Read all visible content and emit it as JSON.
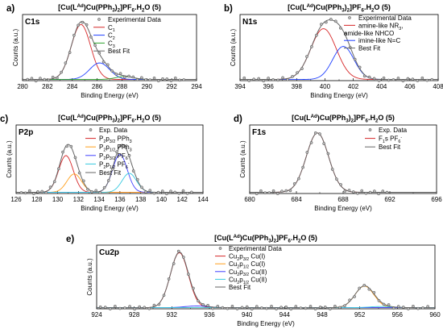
{
  "chart_data": [
    {
      "type": "line",
      "panel_letter": "a)",
      "title": "[Cu(L^Ad)Cu(PPh3)2]PF6.H2O (5)",
      "label": "C1s",
      "xlabel": "Binding Energy (eV)",
      "ylabel": "Counts (a.u.)",
      "xlim": [
        280,
        294
      ],
      "ylim": [
        0,
        1.12
      ],
      "xticks": [
        280,
        282,
        284,
        286,
        288,
        290,
        292,
        294
      ],
      "legend_position": "top-right",
      "peaks": [
        {
          "name": "C1",
          "color": "#d62728",
          "center": 284.7,
          "height": 0.93,
          "width": 0.78
        },
        {
          "name": "C2",
          "color": "#1f3fff",
          "center": 286.2,
          "height": 0.28,
          "width": 0.8
        },
        {
          "name": "C3",
          "color": "#2ca02c",
          "center": 288.2,
          "height": 0.05,
          "width": 0.7
        }
      ],
      "series": [
        {
          "name": "Experimental Data",
          "kind": "points",
          "x_start": 280.4,
          "x_step": 0.34,
          "count": 38
        },
        {
          "name": "Best Fit",
          "kind": "sum",
          "color": "#666666"
        }
      ]
    },
    {
      "type": "line",
      "panel_letter": "b)",
      "title": "[Cu(L^Ad)Cu(PPh3)2]PF6.H2O (5)",
      "label": "N1s",
      "xlabel": "Binding Energy (eV)",
      "ylabel": "Counts (a.u.)",
      "xlim": [
        394,
        408
      ],
      "ylim": [
        0,
        1.12
      ],
      "xticks": [
        394,
        396,
        398,
        400,
        402,
        404,
        406,
        408
      ],
      "legend_position": "top-right",
      "peaks": [
        {
          "name": "amine-like NR3, amide-like NHCO",
          "color": "#d62728",
          "center": 399.9,
          "height": 0.86,
          "width": 0.9
        },
        {
          "name": "imine-like N=C",
          "color": "#1f3fff",
          "center": 401.3,
          "height": 0.56,
          "width": 0.75
        }
      ],
      "series": [
        {
          "name": "Experimental Data",
          "kind": "points",
          "x_start": 394.3,
          "x_step": 0.34,
          "count": 40
        },
        {
          "name": "Best Fit",
          "kind": "sum",
          "color": "#666666"
        }
      ]
    },
    {
      "type": "line",
      "panel_letter": "c)",
      "title": "[Cu(L^Ad)Cu(PPh3)2]PF6.H2O (5)",
      "label": "P2p",
      "xlabel": "Binding Energy (eV)",
      "ylabel": "Counts (a.u.)",
      "xlim": [
        126,
        144
      ],
      "ylim": [
        0,
        1.12
      ],
      "xticks": [
        126,
        128,
        130,
        132,
        134,
        136,
        138,
        140,
        142,
        144
      ],
      "legend_position": "top-center",
      "peaks": [
        {
          "name": "P2p3/2 PPh3",
          "color": "#d62728",
          "center": 130.8,
          "height": 0.6,
          "width": 0.7
        },
        {
          "name": "P2p1/2 PPh3",
          "color": "#ff9f1c",
          "center": 131.6,
          "height": 0.3,
          "width": 0.7
        },
        {
          "name": "P2p3/2 PF6-",
          "color": "#4040ff",
          "center": 136.0,
          "height": 0.62,
          "width": 0.7
        },
        {
          "name": "P2p1/2 PF6-",
          "color": "#36c9e0",
          "center": 136.9,
          "height": 0.31,
          "width": 0.7
        }
      ],
      "series": [
        {
          "name": "Exp. Data",
          "kind": "points",
          "x_start": 126.5,
          "x_step": 0.4,
          "count": 42
        },
        {
          "name": "Best Fit",
          "kind": "sum",
          "color": "#666666"
        }
      ]
    },
    {
      "type": "line",
      "panel_letter": "d)",
      "title": "[Cu(L^Ad)Cu(PPh3)2]PF6.H2O (5)",
      "label": "F1s",
      "xlabel": "Binding Energy (eV)",
      "ylabel": "Counts (a.u.)",
      "xlim": [
        680,
        696
      ],
      "ylim": [
        0,
        1.12
      ],
      "xticks": [
        680,
        684,
        688,
        692,
        696
      ],
      "legend_position": "top-right",
      "peaks": [
        {
          "name": "F1s PF6-",
          "color": "#d62728",
          "center": 685.8,
          "height": 0.97,
          "width": 0.95
        }
      ],
      "series": [
        {
          "name": "Exp. Data",
          "kind": "points",
          "x_start": 680.6,
          "x_step": 0.36,
          "count": 32
        },
        {
          "name": "Best Fit",
          "kind": "sum",
          "color": "#666666"
        }
      ]
    },
    {
      "type": "line",
      "panel_letter": "e)",
      "title": "[Cu(L^Ad)Cu(PPh3)2]PF6.H2O (5)",
      "label": "Cu2p",
      "xlabel": "Binding Energy (eV)",
      "ylabel": "Counts (a.u.)",
      "xlim": [
        924,
        960
      ],
      "ylim": [
        0,
        1.12
      ],
      "xticks": [
        924,
        928,
        932,
        936,
        940,
        944,
        948,
        952,
        956,
        960
      ],
      "legend_position": "top-center",
      "peaks": [
        {
          "name": "Cu2p3/2 Cu(I)",
          "color": "#d62728",
          "center": 932.8,
          "height": 0.97,
          "width": 0.95
        },
        {
          "name": "Cu2p1/2 Cu(I)",
          "color": "#ff9f1c",
          "center": 952.5,
          "height": 0.38,
          "width": 1.0
        },
        {
          "name": "Cu2p3/2 Cu(II)",
          "color": "#4040ff",
          "center": 934.6,
          "height": 0.03,
          "width": 1.2
        },
        {
          "name": "Cu2p1/2 Cu(II)",
          "color": "#36c9e0",
          "center": 954.3,
          "height": 0.02,
          "width": 1.2
        }
      ],
      "series": [
        {
          "name": "Experimental Data",
          "kind": "points",
          "x_start": 924.4,
          "x_step": 0.52,
          "count": 68
        },
        {
          "name": "Best Fit",
          "kind": "sum",
          "color": "#666666"
        }
      ]
    }
  ]
}
